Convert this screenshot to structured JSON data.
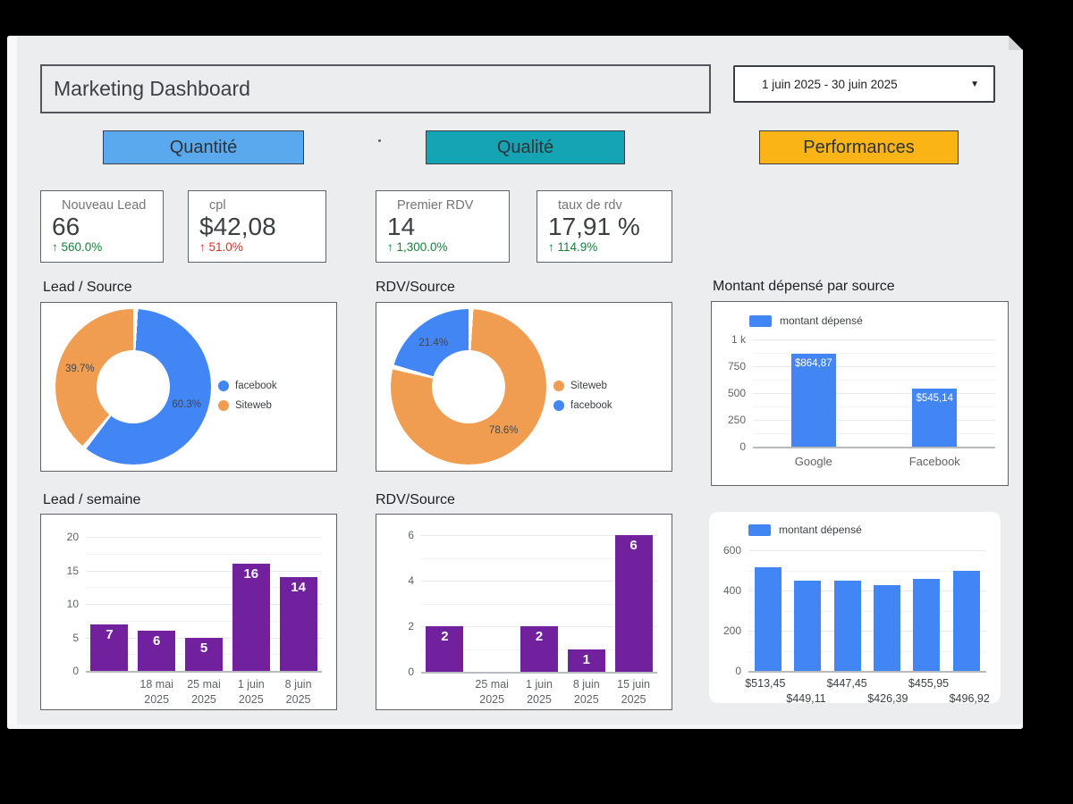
{
  "header": {
    "title": "Marketing Dashboard",
    "date_range": "1 juin 2025 - 30 juin 2025"
  },
  "nav": [
    {
      "label": "Quantité",
      "color": "#5aa9ee"
    },
    {
      "label": "Qualité",
      "color": "#14a4b4"
    },
    {
      "label": "Performances",
      "color": "#fbb416"
    }
  ],
  "kpis": [
    {
      "label": "Nouveau Lead",
      "value": "66",
      "delta_arrow": "↑",
      "delta": "560.0%",
      "delta_color": "#188038"
    },
    {
      "label": "cpl",
      "value": "$42,08",
      "delta_arrow": "↑",
      "delta": "51.0%",
      "delta_color": "#d93025"
    },
    {
      "label": "Premier RDV",
      "value": "14",
      "delta_arrow": "↑",
      "delta": "1,300.0%",
      "delta_color": "#188038"
    },
    {
      "label": "taux de rdv",
      "value": "17,91 %",
      "delta_arrow": "↑",
      "delta": "114.9%",
      "delta_color": "#188038"
    }
  ],
  "chart_data": [
    {
      "type": "pie",
      "title": "Lead / Source",
      "legend_position": "right",
      "slices": [
        {
          "label": "facebook",
          "pct": 60.3,
          "pct_label": "60.3%",
          "color": "#4285f4"
        },
        {
          "label": "Siteweb",
          "pct": 39.7,
          "pct_label": "39.7%",
          "color": "#f09c51"
        }
      ]
    },
    {
      "type": "pie",
      "title": "RDV/Source",
      "legend_position": "right",
      "slices": [
        {
          "label": "Siteweb",
          "pct": 78.6,
          "pct_label": "78.6%",
          "color": "#f09c51"
        },
        {
          "label": "facebook",
          "pct": 21.4,
          "pct_label": "21.4%",
          "color": "#4285f4"
        }
      ]
    },
    {
      "type": "bar",
      "title": "Montant dépensé par source",
      "legend": "montant dépensé",
      "color": "#4285f4",
      "ymax": 1000,
      "grid": true,
      "yticks": [
        {
          "v": 1000,
          "label": "1 k"
        },
        {
          "v": 750,
          "label": "750"
        },
        {
          "v": 500,
          "label": "500"
        },
        {
          "v": 250,
          "label": "250"
        },
        {
          "v": 0,
          "label": "0"
        }
      ],
      "categories": [
        "Google",
        "Facebook"
      ],
      "values": [
        864.87,
        545.14
      ],
      "bar_labels": [
        "$864,87",
        "$545,14"
      ]
    },
    {
      "type": "bar",
      "title": "Lead / semaine",
      "color": "#71209e",
      "ymax": 20,
      "grid": true,
      "yticks": [
        {
          "v": 20,
          "label": "20"
        },
        {
          "v": 15,
          "label": "15"
        },
        {
          "v": 10,
          "label": "10"
        },
        {
          "v": 5,
          "label": "5"
        },
        {
          "v": 0,
          "label": "0"
        }
      ],
      "categories": [
        "",
        "18 mai\n2025",
        "25 mai\n2025",
        "1 juin\n2025",
        "8 juin\n2025"
      ],
      "values": [
        7,
        6,
        5,
        16,
        14
      ],
      "bar_labels": [
        "7",
        "6",
        "5",
        "16",
        "14"
      ]
    },
    {
      "type": "bar",
      "title": "RDV/Source",
      "color": "#71209e",
      "ymax": 6,
      "grid": true,
      "yticks": [
        {
          "v": 6,
          "label": "6"
        },
        {
          "v": 4,
          "label": "4"
        },
        {
          "v": 2,
          "label": "2"
        },
        {
          "v": 0,
          "label": "0"
        }
      ],
      "categories": [
        "",
        "25 mai\n2025",
        "1 juin\n2025",
        "8 juin\n2025",
        "15 juin\n2025"
      ],
      "values": [
        2,
        0,
        2,
        1,
        6
      ],
      "bar_labels": [
        "2",
        "",
        "2",
        "1",
        "6"
      ]
    },
    {
      "type": "bar",
      "legend": "montant dépensé",
      "color": "#4285f4",
      "ymax": 640,
      "grid": true,
      "staggered": true,
      "yticks": [
        {
          "v": 600,
          "label": "600"
        },
        {
          "v": 400,
          "label": "400"
        },
        {
          "v": 200,
          "label": "200"
        },
        {
          "v": 0,
          "label": "0"
        }
      ],
      "categories": [
        "$513,45",
        "$449,11",
        "$447,45",
        "$426,39",
        "$455,95",
        "$496,92"
      ],
      "values": [
        513.45,
        449.11,
        447.45,
        426.39,
        455.95,
        496.92
      ]
    }
  ]
}
